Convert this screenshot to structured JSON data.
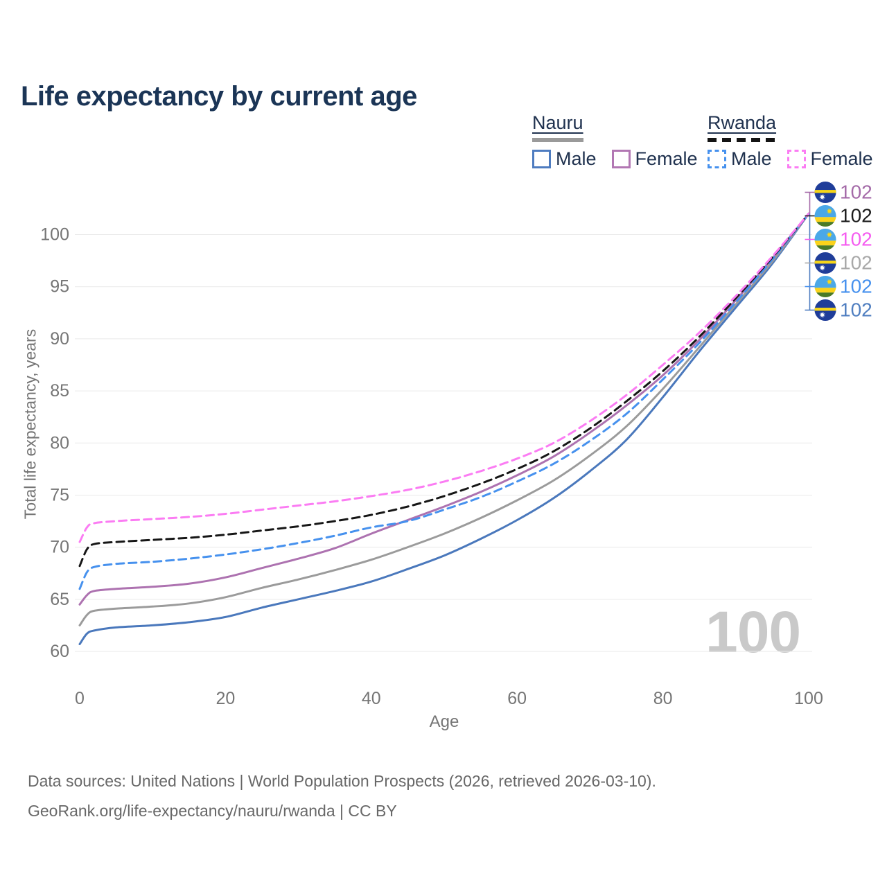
{
  "title": "Life expectancy by current age",
  "watermark": "100",
  "legend": {
    "groups": [
      {
        "country": "Nauru",
        "line_style": "solid",
        "country_swatch_color": "#9a9a9a",
        "items": [
          {
            "label": "Male",
            "color": "#4e7cc0",
            "dashed": false
          },
          {
            "label": "Female",
            "color": "#b277b3",
            "dashed": false
          }
        ]
      },
      {
        "country": "Rwanda",
        "line_style": "dashed",
        "country_swatch_color": "#141414",
        "items": [
          {
            "label": "Male",
            "color": "#4691ee",
            "dashed": true
          },
          {
            "label": "Female",
            "color": "#fb7cf3",
            "dashed": true
          }
        ]
      }
    ]
  },
  "axes": {
    "xlabel": "Age",
    "ylabel": "Total life expectancy, years"
  },
  "footer": {
    "line1": "Data sources: United Nations | World Population Prospects (2026, retrieved 2026-03-10).",
    "line2": "GeoRank.org/life-expectancy/nauru/rwanda | CC BY"
  },
  "chart_data": {
    "type": "line",
    "title": "Life expectancy by current age",
    "xlabel": "Age",
    "ylabel": "Total life expectancy, years",
    "x_ticks": [
      0,
      20,
      40,
      60,
      80,
      100
    ],
    "y_ticks": [
      60,
      65,
      70,
      75,
      80,
      85,
      90,
      95,
      100
    ],
    "xlim": [
      0,
      100
    ],
    "ylim": [
      57,
      103.5
    ],
    "grid": "horizontal",
    "legend_position": "top-right",
    "hovered_x": 100,
    "ages": [
      0,
      1,
      2,
      5,
      10,
      15,
      20,
      25,
      30,
      35,
      40,
      45,
      50,
      55,
      60,
      65,
      70,
      75,
      80,
      85,
      90,
      95,
      100
    ],
    "series": [
      {
        "name": "Nauru Male",
        "country": "Nauru",
        "sex": "male",
        "color": "#4a78bc",
        "dashed": false,
        "values": [
          60.7,
          61.7,
          62.0,
          62.3,
          62.5,
          62.8,
          63.3,
          64.2,
          65.0,
          65.8,
          66.7,
          67.9,
          69.2,
          70.8,
          72.6,
          74.7,
          77.3,
          80.3,
          84.4,
          88.8,
          93.0,
          97.2,
          102
        ]
      },
      {
        "name": "Nauru",
        "country": "Nauru",
        "sex": "both",
        "color": "#9b9b9b",
        "dashed": false,
        "values": [
          62.5,
          63.5,
          63.9,
          64.1,
          64.3,
          64.6,
          65.2,
          66.1,
          66.9,
          67.8,
          68.8,
          70.0,
          71.3,
          72.8,
          74.5,
          76.4,
          78.8,
          81.6,
          85.2,
          89.2,
          93.3,
          97.4,
          102
        ]
      },
      {
        "name": "Nauru Female",
        "country": "Nauru",
        "sex": "female",
        "color": "#ad72b0",
        "dashed": false,
        "values": [
          64.5,
          65.4,
          65.8,
          66.0,
          66.2,
          66.5,
          67.1,
          68.0,
          68.9,
          69.9,
          71.3,
          72.6,
          73.9,
          75.3,
          76.9,
          78.7,
          81.0,
          83.6,
          86.5,
          89.9,
          93.7,
          97.7,
          102
        ]
      },
      {
        "name": "Rwanda Male",
        "country": "Rwanda",
        "sex": "male",
        "color": "#4691ee",
        "dashed": true,
        "values": [
          66.0,
          67.6,
          68.1,
          68.4,
          68.6,
          68.9,
          69.3,
          69.8,
          70.4,
          71.1,
          71.9,
          72.5,
          73.6,
          74.8,
          76.3,
          78.0,
          80.2,
          82.8,
          86.1,
          89.6,
          93.5,
          97.6,
          102
        ]
      },
      {
        "name": "Rwanda",
        "country": "Rwanda",
        "sex": "both",
        "color": "#161616",
        "dashed": true,
        "values": [
          68.2,
          69.8,
          70.3,
          70.5,
          70.7,
          70.9,
          71.2,
          71.6,
          72.0,
          72.5,
          73.1,
          73.9,
          74.9,
          76.1,
          77.5,
          79.2,
          81.4,
          84.0,
          86.9,
          90.2,
          93.9,
          97.8,
          102
        ]
      },
      {
        "name": "Rwanda Female",
        "country": "Rwanda",
        "sex": "female",
        "color": "#fb7cf3",
        "dashed": true,
        "values": [
          70.5,
          71.9,
          72.3,
          72.5,
          72.7,
          72.9,
          73.2,
          73.6,
          74.0,
          74.4,
          74.9,
          75.5,
          76.3,
          77.3,
          78.5,
          80.0,
          82.1,
          84.6,
          87.5,
          90.6,
          94.1,
          97.9,
          102
        ]
      }
    ],
    "end_labels": [
      {
        "series": "Nauru Female",
        "flag": "nauru",
        "value": 102,
        "color": "#a46aa8"
      },
      {
        "series": "Rwanda",
        "flag": "rwanda",
        "value": 102,
        "color": "#1a1a1a"
      },
      {
        "series": "Rwanda Female",
        "flag": "rwanda",
        "value": 102,
        "color": "#f55cf0"
      },
      {
        "series": "Nauru",
        "flag": "nauru",
        "value": 102,
        "color": "#a8a8a8"
      },
      {
        "series": "Rwanda Male",
        "flag": "rwanda",
        "value": 102,
        "color": "#4691ee"
      },
      {
        "series": "Nauru Male",
        "flag": "nauru",
        "value": 102,
        "color": "#4f7ec0"
      }
    ],
    "flag_colors": {
      "nauru": {
        "field": "#1f3d99",
        "stripe": "#f7d618",
        "star": "#ffffff"
      },
      "rwanda": {
        "sky": "#4aa8e8",
        "stripe": "#fbd31b",
        "green": "#4a7a28",
        "sun": "#fcd915"
      }
    }
  }
}
